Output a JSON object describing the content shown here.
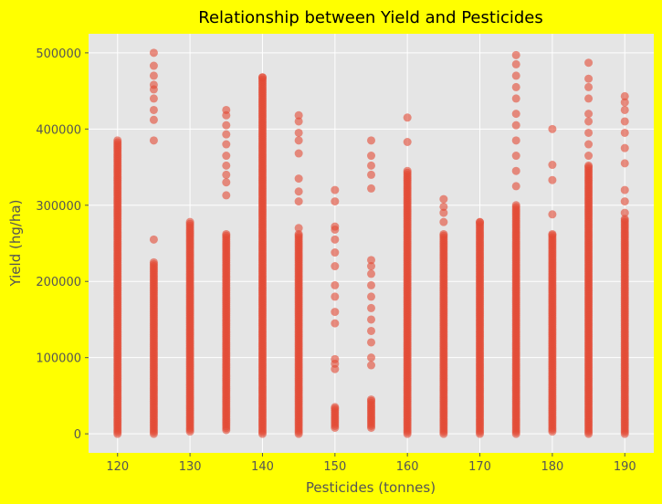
{
  "colors": {
    "figure_background": "#ffff00",
    "plot_background": "#e5e5e5",
    "grid": "#ffffff",
    "points": "#e24a33"
  },
  "chart_data": {
    "type": "scatter",
    "title": "Relationship between Yield and Pesticides",
    "xlabel": "Pesticides (tonnes)",
    "ylabel": "Yield (hg/ha)",
    "xlim": [
      116,
      194
    ],
    "ylim": [
      -25000,
      525000
    ],
    "xticks": [
      120,
      130,
      140,
      150,
      160,
      170,
      180,
      190
    ],
    "yticks": [
      0,
      100000,
      200000,
      300000,
      400000,
      500000
    ],
    "grid": true,
    "marker_alpha": 0.6,
    "series": [
      {
        "points_by_x": [
          {
            "x": 120,
            "range": [
              0,
              385000
            ],
            "extra": []
          },
          {
            "x": 125,
            "range": [
              0,
              225000
            ],
            "extra": [
              255000,
              385000,
              412000,
              425000,
              440000,
              452000,
              458000,
              470000,
              483000,
              500000
            ]
          },
          {
            "x": 130,
            "range": [
              3000,
              278000
            ],
            "extra": []
          },
          {
            "x": 135,
            "range": [
              5000,
              262000
            ],
            "extra": [
              313000,
              330000,
              340000,
              352000,
              365000,
              380000,
              393000,
              405000,
              418000,
              425000
            ]
          },
          {
            "x": 140,
            "range": [
              0,
              468000
            ],
            "extra": []
          },
          {
            "x": 145,
            "range": [
              0,
              262000
            ],
            "extra": [
              270000,
              305000,
              318000,
              335000,
              368000,
              385000,
              395000,
              410000,
              418000
            ]
          },
          {
            "x": 150,
            "range": [
              8000,
              35000
            ],
            "extra": [
              85000,
              92000,
              98000,
              145000,
              160000,
              180000,
              195000,
              220000,
              238000,
              255000,
              268000,
              272000,
              305000,
              320000
            ]
          },
          {
            "x": 155,
            "range": [
              8000,
              45000
            ],
            "extra": [
              90000,
              100000,
              120000,
              135000,
              150000,
              165000,
              180000,
              195000,
              210000,
              220000,
              228000,
              322000,
              340000,
              352000,
              365000,
              385000
            ]
          },
          {
            "x": 160,
            "range": [
              0,
              345000
            ],
            "extra": [
              383000,
              415000
            ]
          },
          {
            "x": 165,
            "range": [
              0,
              262000
            ],
            "extra": [
              278000,
              290000,
              298000,
              308000
            ]
          },
          {
            "x": 170,
            "range": [
              0,
              278000
            ],
            "extra": []
          },
          {
            "x": 175,
            "range": [
              0,
              300000
            ],
            "extra": [
              325000,
              345000,
              365000,
              385000,
              405000,
              420000,
              440000,
              455000,
              470000,
              485000,
              497000
            ]
          },
          {
            "x": 180,
            "range": [
              3000,
              262000
            ],
            "extra": [
              288000,
              333000,
              353000,
              400000
            ]
          },
          {
            "x": 185,
            "range": [
              0,
              352000
            ],
            "extra": [
              365000,
              380000,
              395000,
              410000,
              420000,
              440000,
              455000,
              466000,
              487000
            ]
          },
          {
            "x": 190,
            "range": [
              0,
              282000
            ],
            "extra": [
              290000,
              305000,
              320000,
              355000,
              375000,
              395000,
              410000,
              425000,
              435000,
              443000
            ]
          }
        ]
      }
    ]
  }
}
